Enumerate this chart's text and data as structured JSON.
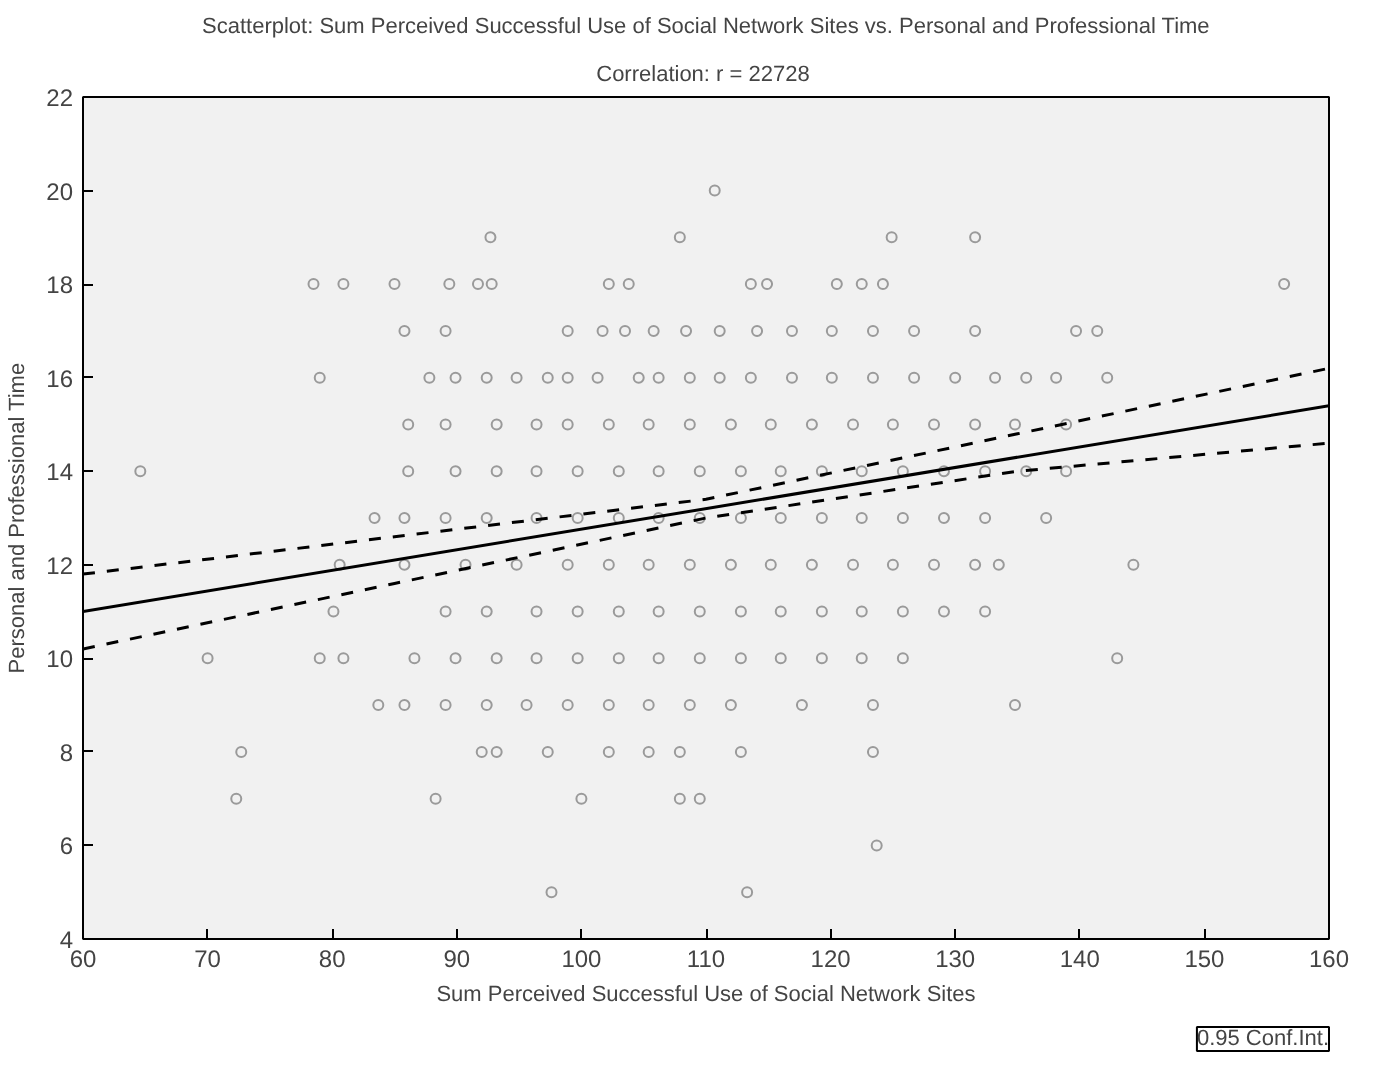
{
  "chart_data": {
    "type": "scatter",
    "title": "Scatterplot: Sum Perceived Successful Use of Social Network Sites vs. Personal and Professional Time",
    "subtitle": "Correlation: r =  22728",
    "xlabel": "Sum Perceived Successful Use of Social Network Sites",
    "ylabel": "Personal and Professional Time",
    "xlim": [
      60,
      160
    ],
    "xticks": [
      60,
      70,
      80,
      90,
      100,
      110,
      120,
      130,
      140,
      150,
      160
    ],
    "ylim": [
      4,
      22
    ],
    "yticks": [
      4,
      6,
      8,
      10,
      12,
      14,
      16,
      18,
      20,
      22
    ],
    "grid": false,
    "annotations": [
      "0.95 Conf.Int."
    ],
    "series": [
      {
        "marker": "circle",
        "color": "#9a9a9a",
        "x": [
          110.7,
          92.7,
          107.9,
          124.9,
          131.6,
          78.5,
          80.9,
          85,
          89.4,
          91.7,
          92.8,
          102.2,
          103.8,
          113.6,
          114.9,
          120.5,
          122.5,
          124.2,
          156.4,
          85.8,
          89.1,
          98.9,
          101.7,
          103.5,
          105.8,
          108.4,
          111.1,
          114.1,
          116.9,
          120.1,
          123.4,
          126.7,
          131.6,
          139.7,
          141.4,
          79,
          87.8,
          89.9,
          92.4,
          94.8,
          97.3,
          98.9,
          101.3,
          104.6,
          106.2,
          108.7,
          111.1,
          113.6,
          116.9,
          120.1,
          123.4,
          126.7,
          130,
          133.2,
          135.7,
          138.1,
          142.2,
          86.1,
          89.1,
          93.2,
          96.4,
          98.9,
          102.2,
          105.4,
          108.7,
          112,
          115.2,
          118.5,
          121.8,
          125,
          128.3,
          131.6,
          134.8,
          138.9,
          64.6,
          86.1,
          89.9,
          93.2,
          96.4,
          99.7,
          103,
          106.2,
          109.5,
          112.8,
          116,
          119.3,
          122.5,
          125.8,
          129.1,
          132.4,
          135.7,
          138.9,
          83.4,
          85.8,
          89.1,
          92.4,
          96.4,
          99.7,
          103,
          106.2,
          109.5,
          112.8,
          116,
          119.3,
          122.5,
          125.8,
          129.1,
          132.4,
          137.3,
          80.6,
          85.8,
          90.7,
          94.8,
          98.9,
          102.2,
          105.4,
          108.7,
          112,
          115.2,
          118.5,
          121.8,
          125,
          128.3,
          131.6,
          133.5,
          144.3,
          80.1,
          89.1,
          92.4,
          96.4,
          99.7,
          103,
          106.2,
          109.5,
          112.8,
          116,
          119.3,
          122.5,
          125.8,
          129.1,
          132.4,
          70,
          79,
          80.9,
          86.6,
          89.9,
          93.2,
          96.4,
          99.7,
          103,
          106.2,
          109.5,
          112.8,
          116,
          119.3,
          122.5,
          125.8,
          143,
          83.7,
          85.8,
          89.1,
          92.4,
          95.6,
          98.9,
          102.2,
          105.4,
          108.7,
          112,
          117.7,
          123.4,
          134.8,
          72.7,
          92,
          93.2,
          97.3,
          102.2,
          105.4,
          107.9,
          112.8,
          123.4,
          72.3,
          88.3,
          100,
          107.9,
          109.5,
          123.7,
          97.6,
          113.3
        ],
        "values": [
          20,
          19,
          19,
          19,
          19,
          18,
          18,
          18,
          18,
          18,
          18,
          18,
          18,
          18,
          18,
          18,
          18,
          18,
          18,
          17,
          17,
          17,
          17,
          17,
          17,
          17,
          17,
          17,
          17,
          17,
          17,
          17,
          17,
          17,
          17,
          16,
          16,
          16,
          16,
          16,
          16,
          16,
          16,
          16,
          16,
          16,
          16,
          16,
          16,
          16,
          16,
          16,
          16,
          16,
          16,
          16,
          16,
          15,
          15,
          15,
          15,
          15,
          15,
          15,
          15,
          15,
          15,
          15,
          15,
          15,
          15,
          15,
          15,
          15,
          14,
          14,
          14,
          14,
          14,
          14,
          14,
          14,
          14,
          14,
          14,
          14,
          14,
          14,
          14,
          14,
          14,
          14,
          13,
          13,
          13,
          13,
          13,
          13,
          13,
          13,
          13,
          13,
          13,
          13,
          13,
          13,
          13,
          13,
          13,
          12,
          12,
          12,
          12,
          12,
          12,
          12,
          12,
          12,
          12,
          12,
          12,
          12,
          12,
          12,
          12,
          12,
          11,
          11,
          11,
          11,
          11,
          11,
          11,
          11,
          11,
          11,
          11,
          11,
          11,
          11,
          11,
          10,
          10,
          10,
          10,
          10,
          10,
          10,
          10,
          10,
          10,
          10,
          10,
          10,
          10,
          10,
          10,
          10,
          9,
          9,
          9,
          9,
          9,
          9,
          9,
          9,
          9,
          9,
          9,
          9,
          9,
          8,
          8,
          8,
          8,
          8,
          8,
          8,
          8,
          8,
          7,
          7,
          7,
          7,
          7,
          6,
          5,
          5
        ]
      },
      {
        "type": "line",
        "color": "#000000",
        "line_style": "solid",
        "x": [
          60,
          160
        ],
        "values": [
          11.0,
          15.4
        ]
      },
      {
        "type": "line",
        "color": "#000000",
        "line_style": "dashed",
        "x": [
          60,
          85,
          110,
          135,
          160
        ],
        "values": [
          11.8,
          12.6,
          13.4,
          14.8,
          16.2
        ]
      },
      {
        "type": "line",
        "color": "#000000",
        "line_style": "dashed",
        "x": [
          60,
          85,
          110,
          135,
          160
        ],
        "values": [
          10.2,
          11.6,
          13.0,
          14.0,
          14.6
        ]
      }
    ]
  }
}
